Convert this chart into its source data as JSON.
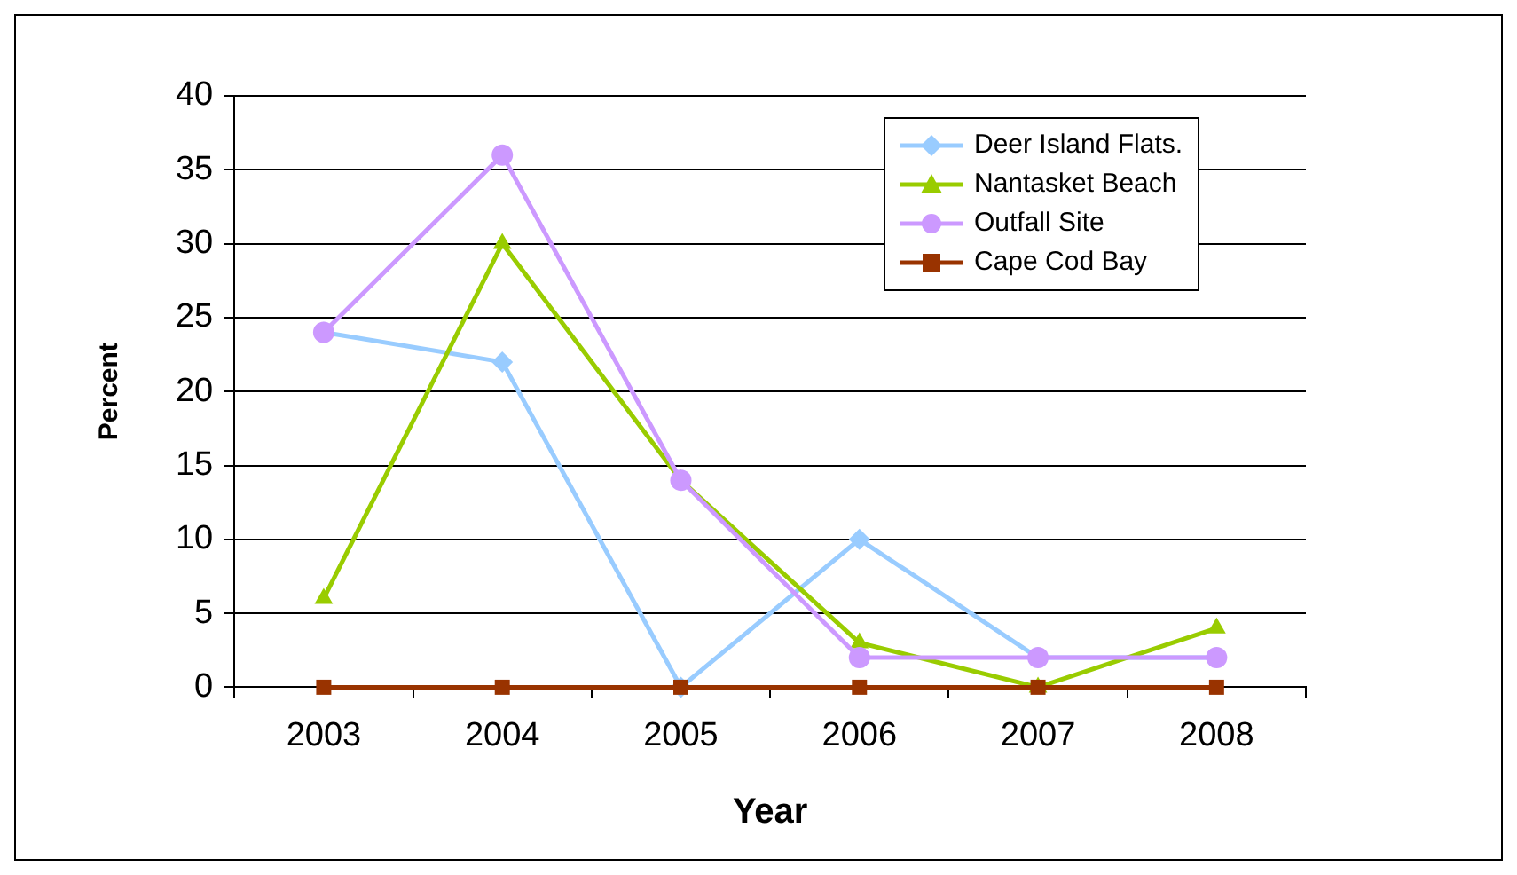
{
  "chart_data": {
    "type": "line",
    "xlabel": "Year",
    "ylabel": "Percent",
    "categories": [
      "2003",
      "2004",
      "2005",
      "2006",
      "2007",
      "2008"
    ],
    "ylim": [
      0,
      40
    ],
    "yticks": [
      0,
      5,
      10,
      15,
      20,
      25,
      30,
      35,
      40
    ],
    "grid": "y",
    "legend": "top right",
    "line_style": "solid",
    "series": [
      {
        "name": "Deer Island Flats.",
        "color": "#99ccff",
        "marker": "diamond",
        "values": [
          24,
          22,
          0,
          10,
          2,
          2
        ]
      },
      {
        "name": "Nantasket Beach",
        "color": "#99cc00",
        "marker": "triangle",
        "values": [
          6,
          30,
          14,
          3,
          0,
          4
        ]
      },
      {
        "name": "Outfall Site",
        "color": "#cc99ff",
        "marker": "circle",
        "values": [
          24,
          36,
          14,
          2,
          2,
          2
        ]
      },
      {
        "name": "Cape Cod Bay",
        "color": "#993300",
        "marker": "square",
        "values": [
          0,
          0,
          0,
          0,
          0,
          0
        ]
      }
    ]
  }
}
